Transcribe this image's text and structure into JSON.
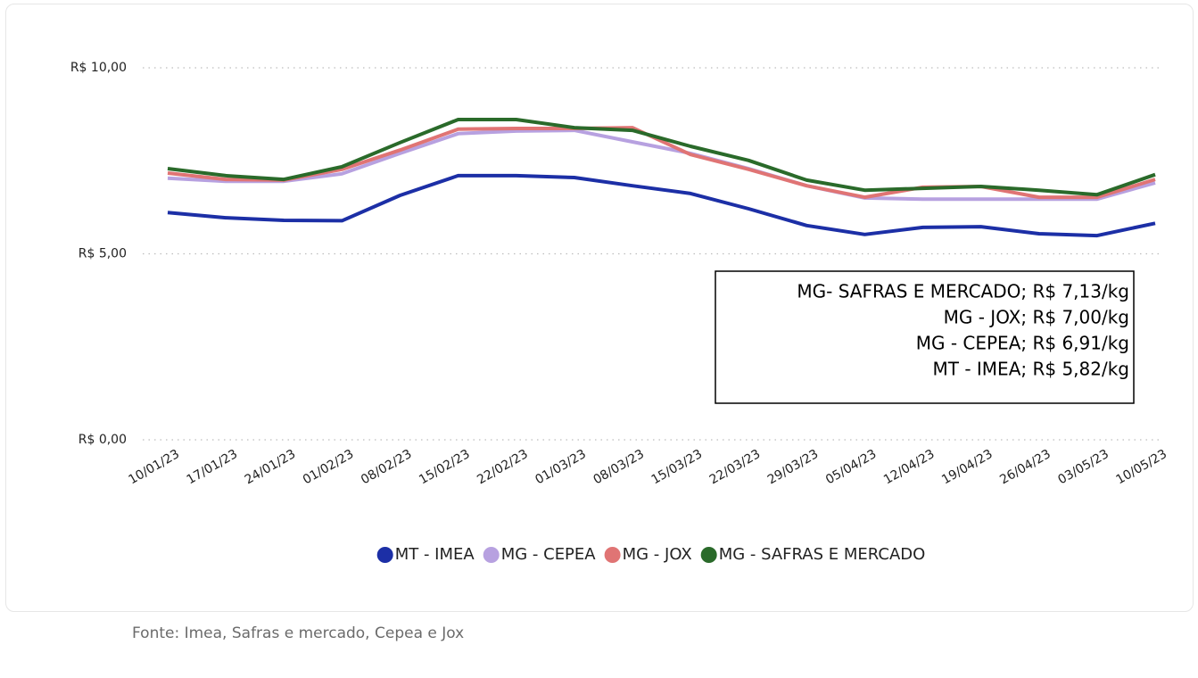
{
  "chart_data": {
    "type": "line",
    "categories": [
      "10/01/23",
      "17/01/23",
      "24/01/23",
      "01/02/23",
      "08/02/23",
      "15/02/23",
      "22/02/23",
      "01/03/23",
      "08/03/23",
      "15/03/23",
      "22/03/23",
      "29/03/23",
      "05/04/23",
      "12/04/23",
      "19/04/23",
      "26/04/23",
      "03/05/23",
      "10/05/23"
    ],
    "series": [
      {
        "name": "MT - IMEA",
        "color": "#1c2fa6",
        "values": [
          6.11,
          5.97,
          5.9,
          5.89,
          6.57,
          7.1,
          7.1,
          7.05,
          6.83,
          6.62,
          6.21,
          5.76,
          5.52,
          5.71,
          5.73,
          5.54,
          5.49,
          5.82
        ]
      },
      {
        "name": "MG - CEPEA",
        "color": "#b7a1e0",
        "values": [
          7.03,
          6.95,
          6.95,
          7.15,
          7.7,
          8.23,
          8.3,
          8.32,
          8.01,
          7.7,
          7.29,
          6.83,
          6.5,
          6.47,
          6.47,
          6.47,
          6.47,
          6.91
        ]
      },
      {
        "name": "MG - JOX",
        "color": "#e07474",
        "values": [
          7.17,
          7.0,
          6.98,
          7.27,
          7.79,
          8.35,
          8.37,
          8.37,
          8.39,
          7.67,
          7.27,
          6.83,
          6.52,
          6.79,
          6.81,
          6.52,
          6.52,
          7.0
        ]
      },
      {
        "name": "MG - SAFRAS E MERCADO",
        "color": "#2a6a2a",
        "values": [
          7.29,
          7.1,
          7.0,
          7.34,
          7.99,
          8.61,
          8.61,
          8.39,
          8.32,
          7.89,
          7.51,
          6.98,
          6.71,
          6.76,
          6.81,
          6.71,
          6.59,
          7.13
        ]
      }
    ],
    "ylim": [
      0,
      10
    ],
    "yticks": [
      {
        "value": 0,
        "label": "R$ 0,00"
      },
      {
        "value": 5,
        "label": "R$ 5,00"
      },
      {
        "value": 10,
        "label": "R$ 10,00"
      }
    ],
    "grid": true,
    "legend": "bottom",
    "annotations": [
      "MG- SAFRAS E MERCADO; R$ 7,13/kg",
      "MG - JOX; R$ 7,00/kg",
      "MG - CEPEA; R$ 6,91/kg",
      "MT - IMEA; R$ 5,82/kg"
    ],
    "source": "Fonte: Imea, Safras e mercado, Cepea e Jox"
  }
}
